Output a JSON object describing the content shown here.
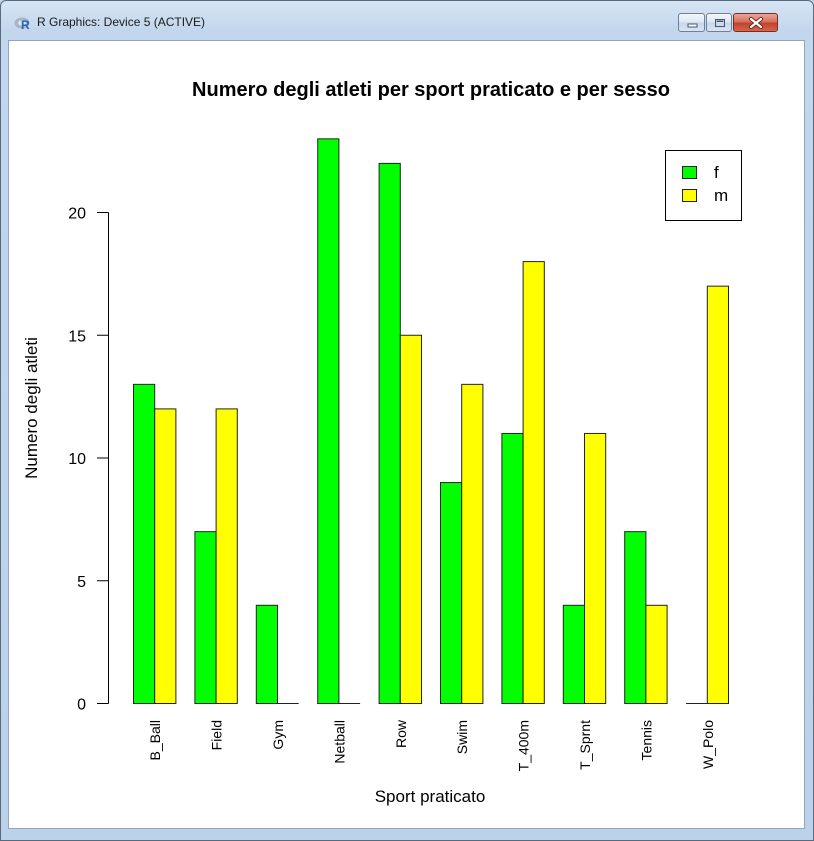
{
  "window": {
    "title": "R Graphics: Device 5 (ACTIVE)",
    "controls": {
      "minimize": "minimize",
      "maximize": "maximize",
      "close": "close"
    }
  },
  "chart_data": {
    "type": "bar",
    "title": "Numero degli atleti per sport praticato e per sesso",
    "xlabel": "Sport praticato",
    "ylabel": "Numero degli atleti",
    "categories": [
      "B_Ball",
      "Field",
      "Gym",
      "Netball",
      "Row",
      "Swim",
      "T_400m",
      "T_Sprnt",
      "Tennis",
      "W_Polo"
    ],
    "series": [
      {
        "name": "f",
        "color": "#00ff00",
        "values": [
          13,
          7,
          4,
          23,
          22,
          9,
          11,
          4,
          7,
          0
        ]
      },
      {
        "name": "m",
        "color": "#ffff00",
        "values": [
          12,
          12,
          0,
          0,
          15,
          13,
          18,
          11,
          4,
          17
        ]
      }
    ],
    "yticks": [
      0,
      5,
      10,
      15,
      20
    ],
    "ylim": [
      0,
      23
    ],
    "grid": false,
    "barmode": "grouped",
    "legend": {
      "position": "top-right",
      "entries": [
        "f",
        "m"
      ]
    }
  }
}
